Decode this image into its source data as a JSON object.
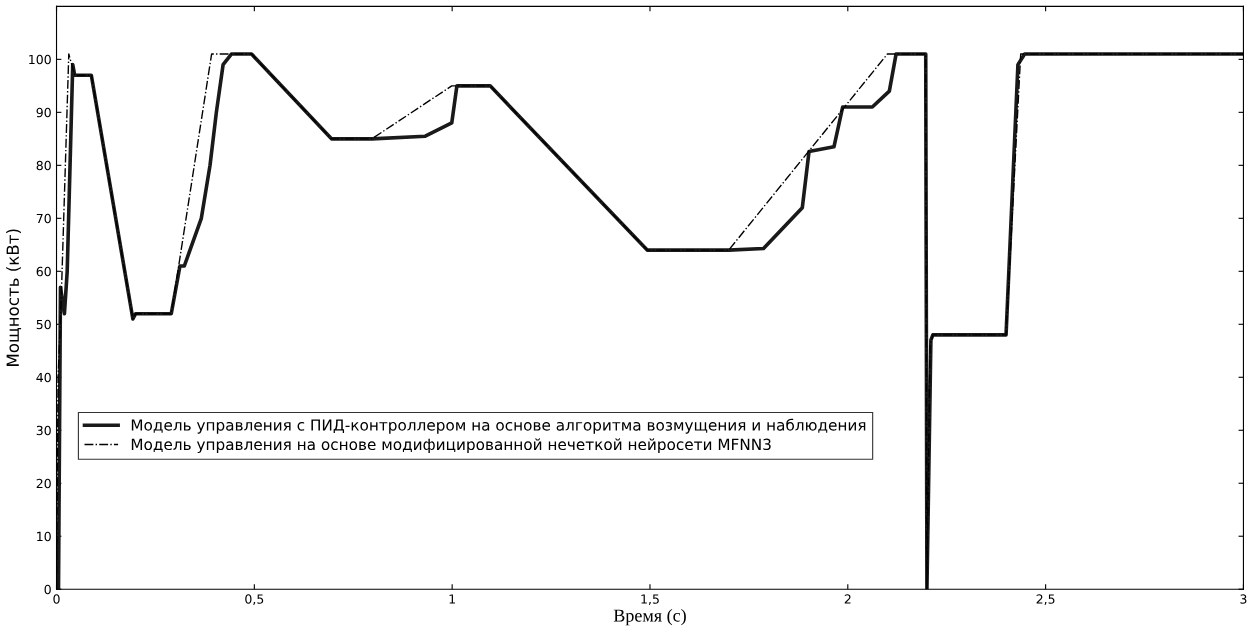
{
  "chart_data": {
    "type": "line",
    "xlabel": "Время (с)",
    "ylabel": "Мощность (кВт)",
    "xlim": [
      0,
      3
    ],
    "ylim": [
      0,
      110
    ],
    "xticks": [
      0,
      {
        "value": 0.5,
        "label": "0,5"
      },
      1,
      {
        "value": 1.5,
        "label": "1,5"
      },
      2,
      {
        "value": 2.5,
        "label": "2,5"
      },
      3
    ],
    "yticks": [
      0,
      10,
      20,
      30,
      40,
      50,
      60,
      70,
      80,
      90,
      100
    ],
    "grid": false,
    "legend": "bottom left",
    "marker": "none",
    "series": [
      {
        "name": "Модель управления с ПИД-контроллером на основе алгоритма возмущения и наблюдения",
        "color": "#1a1a1a",
        "line_style": "solid",
        "x": [
          0,
          0.005,
          0.01,
          0.02,
          0.027,
          0.041,
          0.046,
          0.088,
          0.193,
          0.2,
          0.29,
          0.312,
          0.323,
          0.366,
          0.388,
          0.404,
          0.421,
          0.442,
          0.493,
          0.695,
          0.797,
          0.932,
          0.999,
          1.012,
          1.096,
          1.493,
          1.699,
          1.787,
          1.885,
          1.902,
          1.965,
          1.987,
          2.062,
          2.105,
          2.122,
          2.197,
          2.2,
          2.21,
          2.215,
          2.4,
          2.43,
          2.447,
          3
        ],
        "values": [
          0,
          0,
          57,
          52,
          60,
          99,
          97,
          97,
          51,
          52,
          52,
          61,
          61,
          70,
          80,
          90,
          99,
          101,
          101,
          85,
          85,
          85.5,
          88,
          95,
          95,
          64,
          64,
          64.3,
          72,
          82.6,
          83.5,
          91,
          91,
          94,
          101,
          101,
          0,
          47,
          48,
          48,
          99,
          101,
          101
        ]
      },
      {
        "name": "Модель управления на основе модифицированной нечеткой нейросети MFNN3",
        "color": "#000000",
        "line_style": "dashdot",
        "x": [
          0,
          0.004,
          0.012,
          0.031,
          0.046,
          0.088,
          0.193,
          0.2,
          0.29,
          0.392,
          0.493,
          0.695,
          0.797,
          0.999,
          1.096,
          1.493,
          1.699,
          2.1,
          2.197,
          2.2,
          2.208,
          2.215,
          2.4,
          2.437,
          3
        ],
        "values": [
          0,
          40,
          55,
          101,
          97,
          97,
          51,
          52,
          52,
          101,
          101,
          85,
          85,
          95,
          95,
          64,
          64,
          101,
          101,
          0,
          46,
          48,
          48,
          101,
          101
        ]
      }
    ]
  }
}
